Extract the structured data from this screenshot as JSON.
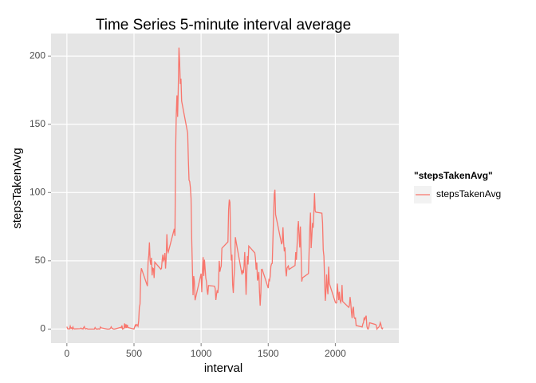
{
  "chart_data": {
    "type": "line",
    "title": "Time Series 5-minute interval average",
    "x_label": "interval",
    "y_label": "stepsTakenAvg",
    "legend_title": "\"stepsTakenAvg\"",
    "xlim": [
      -118,
      2473
    ],
    "ylim": [
      -10.3,
      216.5
    ],
    "xticks": [
      0,
      500,
      1000,
      1500,
      2000
    ],
    "yticks": [
      0,
      50,
      100,
      150,
      200
    ],
    "grid": true,
    "legend": "right",
    "x": [
      0,
      5,
      10,
      15,
      20,
      25,
      30,
      35,
      40,
      45,
      50,
      55,
      100,
      105,
      110,
      115,
      120,
      125,
      130,
      135,
      140,
      145,
      150,
      155,
      200,
      205,
      210,
      215,
      220,
      225,
      230,
      235,
      240,
      245,
      250,
      255,
      300,
      305,
      310,
      315,
      320,
      325,
      330,
      335,
      340,
      345,
      350,
      355,
      400,
      405,
      410,
      415,
      420,
      425,
      430,
      435,
      440,
      445,
      450,
      455,
      500,
      505,
      510,
      515,
      520,
      525,
      530,
      535,
      540,
      545,
      550,
      555,
      600,
      605,
      610,
      615,
      620,
      625,
      630,
      635,
      640,
      645,
      650,
      655,
      700,
      705,
      710,
      715,
      720,
      725,
      730,
      735,
      740,
      745,
      750,
      755,
      800,
      805,
      810,
      815,
      820,
      825,
      830,
      835,
      840,
      845,
      850,
      855,
      900,
      905,
      910,
      915,
      920,
      925,
      930,
      935,
      940,
      945,
      950,
      955,
      1000,
      1005,
      1010,
      1015,
      1020,
      1025,
      1030,
      1035,
      1040,
      1045,
      1050,
      1055,
      1100,
      1105,
      1110,
      1115,
      1120,
      1125,
      1130,
      1135,
      1140,
      1145,
      1150,
      1155,
      1200,
      1205,
      1210,
      1215,
      1220,
      1225,
      1230,
      1235,
      1240,
      1245,
      1250,
      1255,
      1300,
      1305,
      1310,
      1315,
      1320,
      1325,
      1330,
      1335,
      1340,
      1345,
      1350,
      1355,
      1400,
      1405,
      1410,
      1415,
      1420,
      1425,
      1430,
      1435,
      1440,
      1445,
      1450,
      1455,
      1500,
      1505,
      1510,
      1515,
      1520,
      1525,
      1530,
      1535,
      1540,
      1545,
      1550,
      1555,
      1600,
      1605,
      1610,
      1615,
      1620,
      1625,
      1630,
      1635,
      1640,
      1645,
      1650,
      1655,
      1700,
      1705,
      1710,
      1715,
      1720,
      1725,
      1730,
      1735,
      1740,
      1745,
      1750,
      1755,
      1800,
      1805,
      1810,
      1815,
      1820,
      1825,
      1830,
      1835,
      1840,
      1845,
      1850,
      1855,
      1900,
      1905,
      1910,
      1915,
      1920,
      1925,
      1930,
      1935,
      1940,
      1945,
      1950,
      1955,
      2000,
      2005,
      2010,
      2015,
      2020,
      2025,
      2030,
      2035,
      2040,
      2045,
      2050,
      2055,
      2100,
      2105,
      2110,
      2115,
      2120,
      2125,
      2130,
      2135,
      2140,
      2145,
      2150,
      2155,
      2200,
      2205,
      2210,
      2215,
      2220,
      2225,
      2230,
      2235,
      2240,
      2245,
      2250,
      2255,
      2300,
      2305,
      2310,
      2315,
      2320,
      2325,
      2330,
      2335,
      2340,
      2345,
      2350,
      2355
    ],
    "series": [
      {
        "name": "stepsTakenAvg",
        "color": "#f8766d",
        "values": [
          1.7,
          0.3,
          0.1,
          0.2,
          0.1,
          2.1,
          0.5,
          0.9,
          0,
          1.5,
          0.3,
          0.1,
          0.3,
          0.7,
          0.2,
          0.3,
          0,
          1.1,
          1.8,
          0.2,
          0.2,
          0.4,
          0.3,
          0,
          0,
          0,
          1.1,
          0.3,
          0,
          0.1,
          0,
          0.2,
          0,
          0,
          1.5,
          0.9,
          0,
          0,
          0,
          0,
          0.2,
          0.6,
          1.6,
          0.6,
          0.5,
          0.1,
          0,
          0,
          1.2,
          0.9,
          2.6,
          0,
          0.3,
          0.4,
          4.1,
          0.7,
          3.5,
          0.8,
          3.1,
          1.1,
          0,
          1.6,
          3,
          2.2,
          3.3,
          3,
          2.1,
          6.1,
          16,
          18.3,
          39.5,
          44.5,
          31.5,
          49.3,
          53.8,
          63.5,
          50,
          47.1,
          52.2,
          39.3,
          44.6,
          44.2,
          37.4,
          49,
          43.8,
          44.4,
          50.5,
          54.5,
          49.9,
          51,
          55.7,
          44.3,
          52.3,
          69.5,
          57.8,
          56.2,
          73.4,
          68.2,
          129.4,
          157.5,
          171.2,
          155.4,
          177.3,
          206.2,
          195.9,
          179.6,
          183.4,
          167,
          143.5,
          124,
          109.1,
          108.1,
          103.7,
          95.9,
          66.2,
          45.2,
          24.8,
          38.8,
          34.98,
          21.1,
          40.6,
          27,
          42.4,
          52.7,
          38.9,
          50.8,
          44.3,
          37.4,
          34.7,
          28.3,
          25.1,
          31.9,
          31.4,
          29.7,
          21.3,
          25.5,
          28.4,
          26.5,
          33.4,
          49.98,
          42,
          44.6,
          46,
          59.2,
          63.9,
          87.7,
          94.8,
          92.8,
          63.4,
          50.2,
          54.5,
          32.4,
          26.5,
          37.7,
          45.1,
          67.3,
          42.3,
          39.9,
          43.3,
          40.98,
          46.2,
          56.4,
          42.8,
          25.1,
          40,
          53.5,
          47.3,
          60.8,
          55.8,
          52,
          43.6,
          48.7,
          35.5,
          37.5,
          41.8,
          27.5,
          17.1,
          26.1,
          43.6,
          43.8,
          30,
          36.1,
          35.5,
          38.8,
          45.96,
          47.8,
          48.1,
          65.3,
          82.9,
          98.7,
          102.1,
          83.96,
          62.1,
          64.1,
          74.5,
          63.2,
          56.9,
          59.8,
          43.9,
          38.6,
          44.7,
          45.5,
          46.2,
          43.7,
          46.6,
          56.3,
          50.7,
          61.2,
          73.4,
          79.1,
          68.9,
          59.7,
          75.1,
          56.5,
          34.8,
          37.5,
          40.7,
          58,
          74.7,
          85.3,
          59.3,
          67.8,
          77.7,
          74.2,
          85.3,
          99.5,
          86.6,
          85.6,
          84.9,
          77.8,
          58,
          53.4,
          36.3,
          20.7,
          27.4,
          40,
          30.2,
          25.5,
          45.7,
          33.5,
          19.6,
          19,
          19.3,
          33.3,
          26.8,
          21.2,
          27.3,
          21.3,
          19.5,
          21.3,
          32.3,
          20.2,
          15.9,
          17.2,
          23.5,
          19.2,
          12.5,
          8,
          14.7,
          16.3,
          8.7,
          7.8,
          8.1,
          2.6,
          1.5,
          3.7,
          4.8,
          8.5,
          7.1,
          8.7,
          9.8,
          2.2,
          0.3,
          0.1,
          1.6,
          4.6,
          3.3,
          2.8,
          0,
          0.8,
          0.96,
          1.6,
          2.6,
          4.7,
          3.3,
          0.6,
          0.2,
          1.1
        ]
      }
    ]
  }
}
